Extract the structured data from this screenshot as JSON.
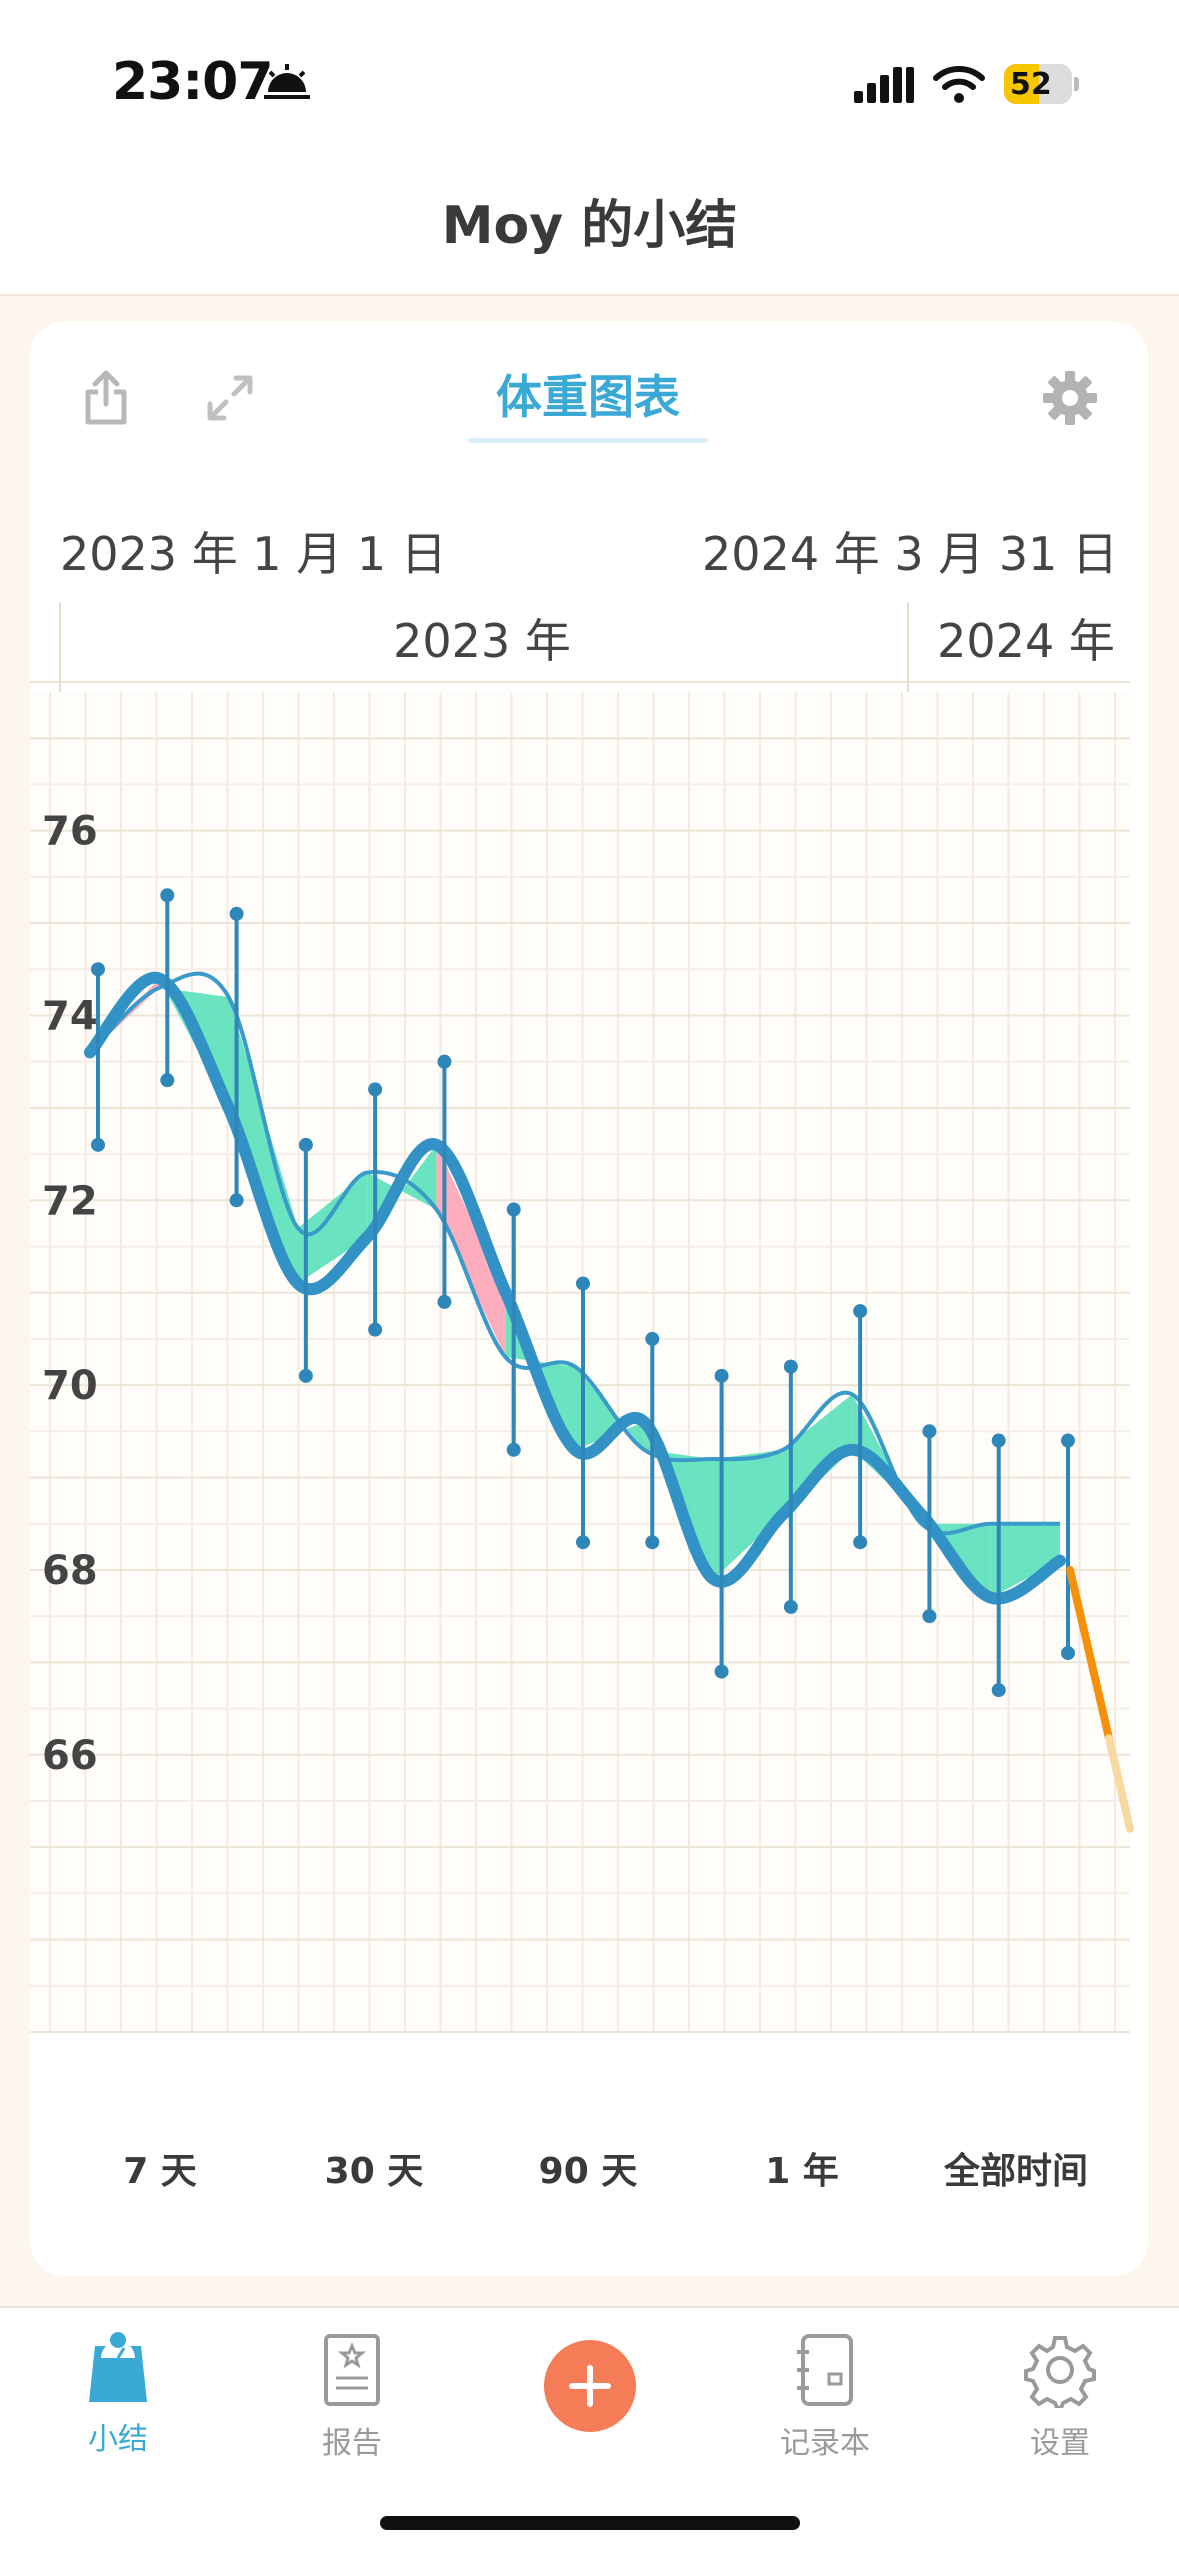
{
  "status_bar": {
    "time": "23:07",
    "battery": "52"
  },
  "nav": {
    "title": "Moy 的小结"
  },
  "card": {
    "chart_tab": "体重图表",
    "date_start": "2023 年 1 月 1 日",
    "date_end": "2024 年 3 月 31 日"
  },
  "chart_data": {
    "type": "line",
    "title": "",
    "xlabel": "",
    "ylabel": "",
    "period_labels": [
      "2023 年",
      "2024 年"
    ],
    "y_ticks": [
      "76",
      "74",
      "72",
      "70",
      "68",
      "66"
    ],
    "ylim": [
      63,
      77.5
    ],
    "grid": true,
    "series": [
      {
        "values": [
          73.6,
          74.4,
          73.0,
          71.1,
          71.6,
          72.6,
          71.0,
          69.3,
          69.6,
          67.9,
          68.6,
          69.3,
          68.6,
          67.7,
          68.1
        ]
      },
      {
        "values": [
          73.6,
          74.3,
          74.2,
          71.7,
          72.3,
          71.9,
          70.3,
          70.2,
          69.3,
          69.2,
          69.3,
          69.9,
          68.5,
          68.5,
          68.5
        ]
      }
    ],
    "trend": [
      68.0,
      65.2
    ]
  },
  "ranges": [
    "7 天",
    "30 天",
    "90 天",
    "1 年",
    "全部时间"
  ],
  "tabbar": {
    "items": [
      {
        "label": "小结",
        "icon": "scale-icon"
      },
      {
        "label": "报告",
        "icon": "report-icon"
      },
      {
        "label": "",
        "icon": "add-icon"
      },
      {
        "label": "记录本",
        "icon": "notebook-icon"
      },
      {
        "label": "设置",
        "icon": "gear-icon"
      }
    ]
  },
  "colors": {
    "accent": "#3aa9d6",
    "line": "#3392c5",
    "gain": "#fda4b6",
    "loss": "#5ae0b9",
    "trend": "#f5900a",
    "add": "#f47c57"
  }
}
